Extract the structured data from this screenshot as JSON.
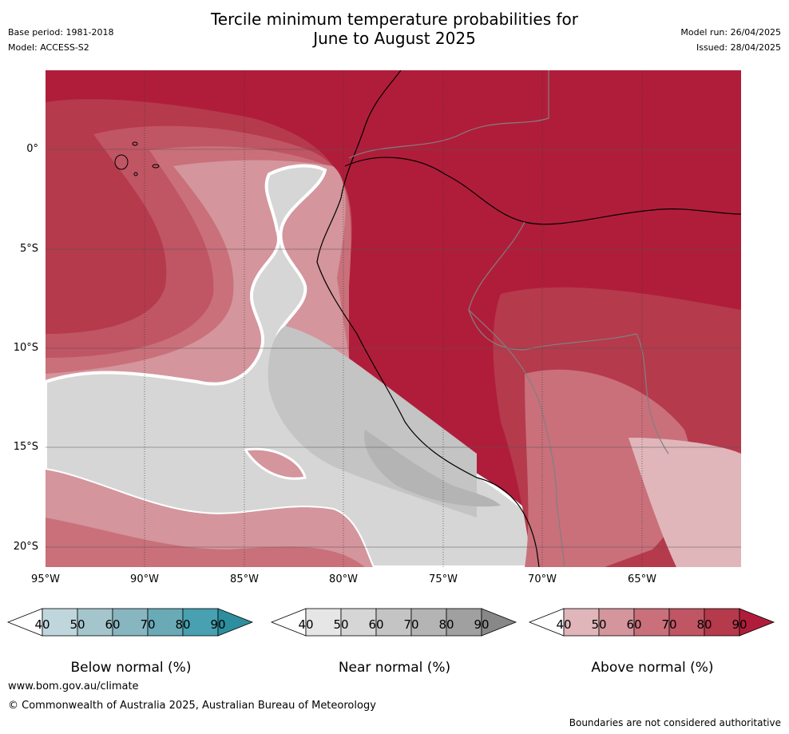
{
  "title_line1": "Tercile minimum temperature probabilities for",
  "title_line2": "June to August 2025",
  "base_period": "Base period: 1981-2018",
  "model": "Model: ACCESS-S2",
  "model_run": "Model run: 26/04/2025",
  "issued": "Issued: 28/04/2025",
  "lat_labels": [
    "0°",
    "5°S",
    "10°S",
    "15°S",
    "20°S"
  ],
  "lon_labels": [
    "95°W",
    "90°W",
    "85°W",
    "80°W",
    "75°W",
    "70°W",
    "65°W"
  ],
  "colorbars": [
    {
      "title": "Below normal (%)",
      "ticks": [
        "40",
        "50",
        "60",
        "70",
        "80",
        "90"
      ],
      "colors": [
        "#ffffff",
        "#bfd6dc",
        "#a5c5cc",
        "#88b6c0",
        "#6aaab6",
        "#48a0b0",
        "#2d8e9e"
      ]
    },
    {
      "title": "Near normal (%)",
      "ticks": [
        "40",
        "50",
        "60",
        "70",
        "80",
        "90"
      ],
      "colors": [
        "#ffffff",
        "#e6e6e6",
        "#d6d6d6",
        "#c4c4c4",
        "#b4b4b4",
        "#a0a0a0",
        "#888888"
      ]
    },
    {
      "title": "Above normal (%)",
      "ticks": [
        "40",
        "50",
        "60",
        "70",
        "80",
        "90"
      ],
      "colors": [
        "#ffffff",
        "#e0b6bb",
        "#d4959c",
        "#c9707b",
        "#c05564",
        "#b53a4c",
        "#b01d3a"
      ]
    }
  ],
  "footer_url": "www.bom.gov.au/climate",
  "footer_copyright": "© Commonwealth of Australia 2025, Australian Bureau of Meteorology",
  "disclaimer": "Boundaries are not considered authoritative"
}
